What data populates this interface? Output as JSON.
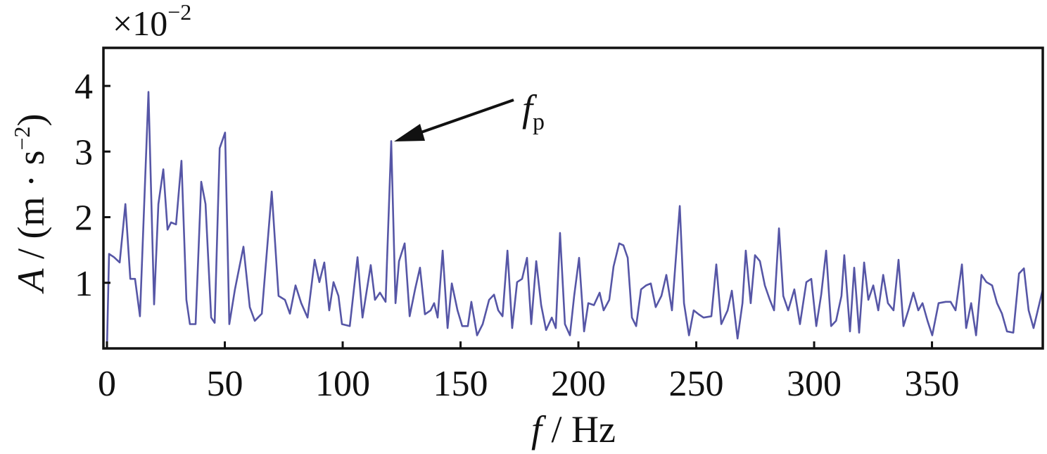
{
  "chart_data": {
    "type": "line",
    "multiplier": [
      "×10",
      "−2"
    ],
    "xlabel": [
      "f",
      " / Hz"
    ],
    "ylabel": [
      "A",
      " / (m · s",
      "−2",
      ")"
    ],
    "annotation": [
      "f",
      "p"
    ],
    "xlim": [
      -1.5,
      397
    ],
    "ylim": [
      0,
      4.58
    ],
    "xticks": [
      0,
      50,
      100,
      150,
      200,
      250,
      300,
      350
    ],
    "yticks": [
      1,
      2,
      3,
      4
    ],
    "x": [
      0,
      0.9,
      3.0,
      5.4,
      7.8,
      9.9,
      11.9,
      14.0,
      17.6,
      20.0,
      21.8,
      23.9,
      25.7,
      27.2,
      29.3,
      31.6,
      33.7,
      35.2,
      37.6,
      40.0,
      41.8,
      44.2,
      45.7,
      47.8,
      50.1,
      51.9,
      54.3,
      57.9,
      60.6,
      62.7,
      65.7,
      69.9,
      72.8,
      75.5,
      77.6,
      80.0,
      82.4,
      85.1,
      88.1,
      90.1,
      92.2,
      94.3,
      96.1,
      98.2,
      99.7,
      103.0,
      106.3,
      108.4,
      111.9,
      113.7,
      115.8,
      118.2,
      120.6,
      122.4,
      123.9,
      126.3,
      128.4,
      130.7,
      132.8,
      134.9,
      137.3,
      138.8,
      140.3,
      142.4,
      144.5,
      146.3,
      148.7,
      150.7,
      153.1,
      154.6,
      157.0,
      159.4,
      162.1,
      164.2,
      166.0,
      167.8,
      169.9,
      171.9,
      174.0,
      176.1,
      178.2,
      180.0,
      182.1,
      184.2,
      186.3,
      188.7,
      190.4,
      192.2,
      194.3,
      196.4,
      198.2,
      200.3,
      202.4,
      204.2,
      206.6,
      209.0,
      210.7,
      213.1,
      214.9,
      217.3,
      219.1,
      220.9,
      222.7,
      224.5,
      226.6,
      228.7,
      230.7,
      232.8,
      235.2,
      237.3,
      239.7,
      243.0,
      244.8,
      246.9,
      248.9,
      251.0,
      253.1,
      256.4,
      258.5,
      260.6,
      263.3,
      265.1,
      267.5,
      269.6,
      271.0,
      273.1,
      274.9,
      277.0,
      279.1,
      281.2,
      283.0,
      285.1,
      286.9,
      289.0,
      291.6,
      294.0,
      296.7,
      298.8,
      300.9,
      303.0,
      305.1,
      307.2,
      309.3,
      311.6,
      312.8,
      315.2,
      317.0,
      319.1,
      321.2,
      323.0,
      325.1,
      327.2,
      329.3,
      331.3,
      333.7,
      335.8,
      337.9,
      340.0,
      342.1,
      344.2,
      346.0,
      348.1,
      350.1,
      352.8,
      355.8,
      357.9,
      360.0,
      362.7,
      364.5,
      366.6,
      368.7,
      371.0,
      373.1,
      375.5,
      377.6,
      379.7,
      381.8,
      384.5,
      386.9,
      389.0,
      391.0,
      393.1,
      397.0
    ],
    "series": [
      {
        "color": "#5656a6",
        "values": [
          0,
          1.44,
          1.39,
          1.31,
          2.2,
          1.06,
          1.06,
          0.49,
          3.91,
          0.67,
          2.2,
          2.73,
          1.81,
          1.92,
          1.89,
          2.86,
          0.74,
          0.37,
          0.37,
          2.54,
          2.2,
          0.47,
          0.39,
          3.05,
          3.29,
          0.37,
          0.9,
          1.55,
          0.63,
          0.42,
          0.53,
          2.39,
          0.8,
          0.74,
          0.53,
          0.96,
          0.69,
          0.47,
          1.35,
          1.01,
          1.31,
          0.58,
          1.01,
          0.8,
          0.37,
          0.34,
          1.39,
          0.47,
          1.27,
          0.74,
          0.85,
          0.71,
          3.16,
          0.69,
          1.33,
          1.6,
          0.49,
          0.9,
          1.23,
          0.52,
          0.58,
          0.69,
          0.47,
          1.49,
          0.31,
          0.99,
          0.58,
          0.34,
          0.34,
          0.71,
          0.2,
          0.37,
          0.74,
          0.82,
          0.58,
          0.49,
          1.49,
          0.31,
          1.01,
          1.06,
          1.38,
          0.37,
          1.33,
          0.66,
          0.28,
          0.47,
          0.31,
          1.76,
          0.37,
          0.2,
          0.8,
          1.38,
          0.26,
          0.69,
          0.66,
          0.85,
          0.58,
          0.74,
          1.25,
          1.6,
          1.57,
          1.38,
          0.47,
          0.34,
          0.9,
          0.96,
          0.99,
          0.63,
          0.8,
          1.12,
          0.58,
          2.17,
          0.69,
          0.2,
          0.58,
          0.52,
          0.47,
          0.49,
          1.28,
          0.37,
          0.58,
          0.88,
          0.15,
          0.69,
          1.49,
          0.69,
          1.42,
          1.33,
          0.96,
          0.74,
          0.58,
          1.83,
          0.8,
          0.58,
          0.9,
          0.37,
          1.01,
          1.06,
          0.34,
          0.82,
          1.49,
          0.34,
          0.42,
          0.8,
          1.42,
          0.26,
          1.23,
          0.24,
          1.31,
          0.74,
          0.96,
          0.58,
          1.12,
          0.69,
          0.58,
          1.35,
          0.34,
          0.58,
          0.85,
          0.58,
          0.69,
          0.42,
          0.2,
          0.69,
          0.71,
          0.71,
          0.58,
          1.28,
          0.31,
          0.69,
          0.2,
          1.12,
          1.01,
          0.96,
          0.69,
          0.53,
          0.26,
          0.24,
          1.14,
          1.22,
          0.58,
          0.31,
          0.9
        ]
      }
    ]
  }
}
